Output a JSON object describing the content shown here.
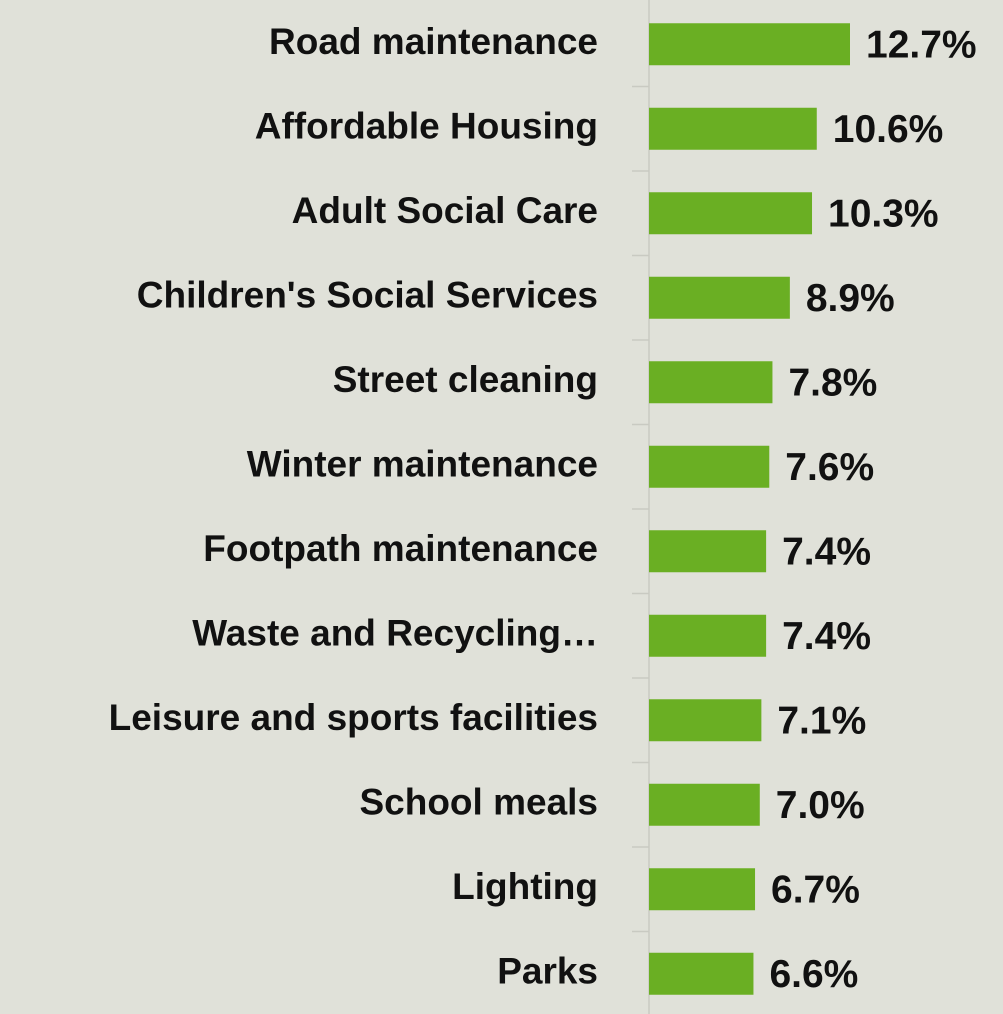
{
  "chart_data": {
    "type": "bar",
    "orientation": "horizontal",
    "categories": [
      "Road maintenance",
      "Affordable Housing",
      "Adult Social Care",
      "Children's Social Services",
      "Street cleaning",
      "Winter maintenance",
      "Footpath maintenance",
      "Waste and Recycling…",
      "Leisure and sports facilities",
      "School meals",
      "Lighting",
      "Parks"
    ],
    "values": [
      12.7,
      10.6,
      10.3,
      8.9,
      7.8,
      7.6,
      7.4,
      7.4,
      7.1,
      7.0,
      6.7,
      6.6
    ],
    "value_labels": [
      "12.7%",
      "10.6%",
      "10.3%",
      "8.9%",
      "7.8%",
      "7.6%",
      "7.4%",
      "7.4%",
      "7.1%",
      "7.0%",
      "6.7%",
      "6.6%"
    ],
    "color": "#6aaf23"
  }
}
